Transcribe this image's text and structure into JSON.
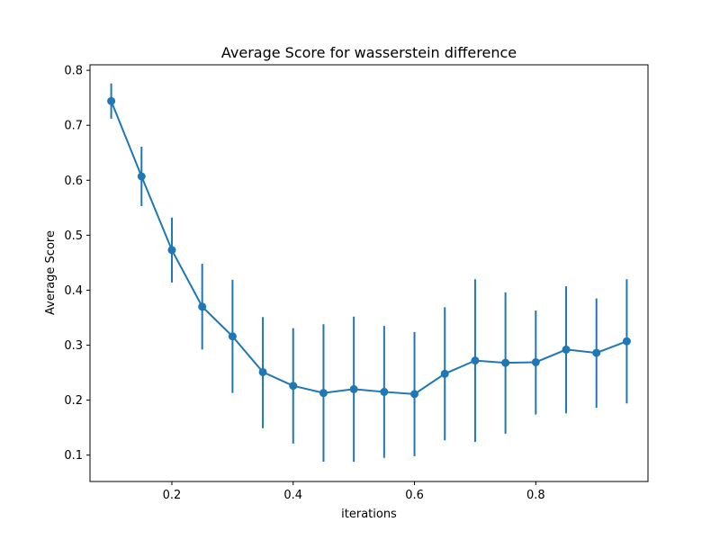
{
  "chart_data": {
    "type": "line",
    "title": "Average Score for wasserstein difference",
    "xlabel": "iterations",
    "ylabel": "Average Score",
    "xlim": [
      0.065,
      0.985
    ],
    "ylim": [
      0.052,
      0.81
    ],
    "xticks": [
      0.2,
      0.4,
      0.6,
      0.8
    ],
    "xtick_labels": [
      "0.2",
      "0.4",
      "0.6",
      "0.8"
    ],
    "yticks": [
      0.1,
      0.2,
      0.3,
      0.4,
      0.5,
      0.6,
      0.7,
      0.8
    ],
    "ytick_labels": [
      "0.1",
      "0.2",
      "0.3",
      "0.4",
      "0.5",
      "0.6",
      "0.7",
      "0.8"
    ],
    "grid": false,
    "color": "#1f77b4",
    "series": [
      {
        "x": [
          0.1,
          0.15,
          0.2,
          0.25,
          0.3,
          0.35,
          0.4,
          0.45,
          0.5,
          0.55,
          0.6,
          0.65,
          0.7,
          0.75,
          0.8,
          0.85,
          0.9,
          0.95
        ],
        "y": [
          0.744,
          0.607,
          0.473,
          0.37,
          0.316,
          0.251,
          0.226,
          0.213,
          0.22,
          0.215,
          0.211,
          0.248,
          0.272,
          0.268,
          0.269,
          0.292,
          0.286,
          0.307
        ],
        "err_low": [
          0.712,
          0.553,
          0.414,
          0.292,
          0.213,
          0.149,
          0.121,
          0.088,
          0.088,
          0.095,
          0.098,
          0.127,
          0.124,
          0.139,
          0.174,
          0.176,
          0.186,
          0.194
        ],
        "err_high": [
          0.776,
          0.661,
          0.532,
          0.448,
          0.419,
          0.351,
          0.331,
          0.338,
          0.352,
          0.335,
          0.324,
          0.369,
          0.42,
          0.396,
          0.363,
          0.407,
          0.385,
          0.42
        ]
      }
    ]
  }
}
